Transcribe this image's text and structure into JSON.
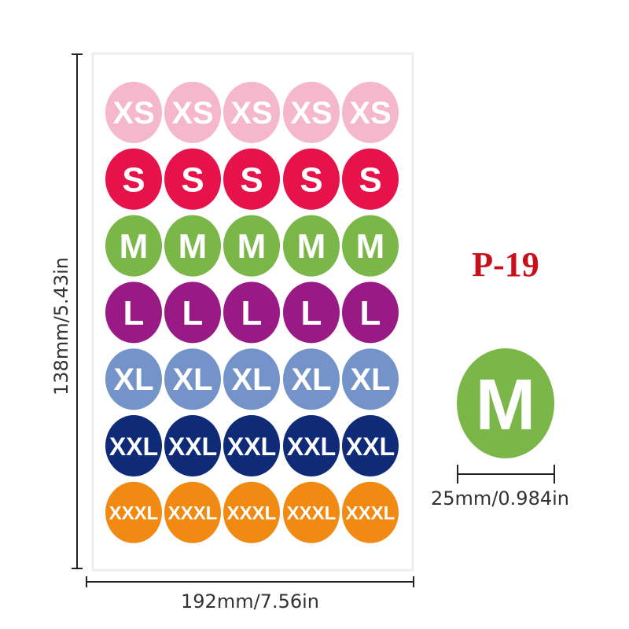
{
  "product": {
    "code": "P-19",
    "sheet": {
      "rows": [
        {
          "label": "XS",
          "color": "#f5b7cb"
        },
        {
          "label": "S",
          "color": "#e8124b"
        },
        {
          "label": "M",
          "color": "#7ab648"
        },
        {
          "label": "L",
          "color": "#9a1a85"
        },
        {
          "label": "XL",
          "color": "#7493c9"
        },
        {
          "label": "XXL",
          "color": "#0f2b78"
        },
        {
          "label": "XXXL",
          "color": "#f08a12"
        }
      ],
      "height": "138mm/5.43in",
      "width": "192mm/7.56in"
    },
    "sample": {
      "label": "M",
      "color": "#7ab648",
      "diameter": "25mm/0.984in"
    }
  }
}
